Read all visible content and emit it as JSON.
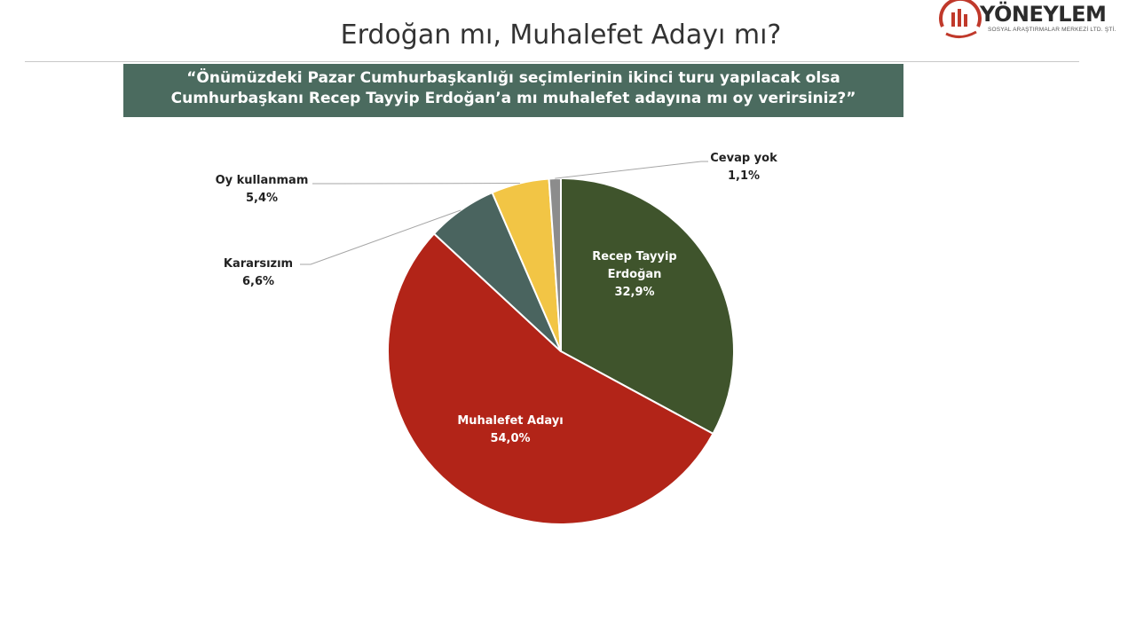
{
  "header": {
    "title": "Erdoğan mı, Muhalefet Adayı mı?",
    "question": "“Önümüzdeki Pazar Cumhurbaşkanlığı seçimlerinin ikinci turu yapılacak olsa Cumhurbaşkanı Recep Tayyip Erdoğan’a mı muhalefet adayına mı oy verirsiniz?”",
    "accent_color": "#4b6b5f"
  },
  "logo": {
    "name": "YÖNEYLEM",
    "subtitle": "SOSYAL ARAŞTIRMALAR MERKEZİ LTD. ŞTİ.",
    "color": "#c0392b"
  },
  "chart_data": {
    "type": "pie",
    "title": "",
    "categories": [
      "Recep Tayyip Erdoğan",
      "Muhalefet Adayı",
      "Kararsızım",
      "Oy kullanmam",
      "Cevap yok"
    ],
    "values": [
      32.9,
      54.0,
      6.6,
      5.4,
      1.1
    ],
    "labels": [
      "32,9%",
      "54,0%",
      "6,6%",
      "5,4%",
      "1,1%"
    ],
    "colors": [
      "#3f542c",
      "#b22418",
      "#4a645f",
      "#f2c545",
      "#8c8c8c"
    ],
    "start_angle": "12 o'clock",
    "direction": "clockwise"
  }
}
